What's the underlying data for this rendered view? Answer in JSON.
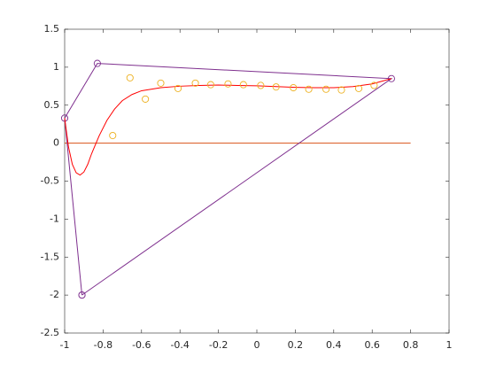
{
  "chart_data": {
    "type": "line",
    "xlim": [
      -1,
      1
    ],
    "ylim": [
      -2.5,
      1.5
    ],
    "xticks": [
      -1,
      -0.8,
      -0.6,
      -0.4,
      -0.2,
      0,
      0.2,
      0.4,
      0.6,
      0.8,
      1
    ],
    "yticks": [
      -2.5,
      -2,
      -1.5,
      -1,
      -0.5,
      0,
      0.5,
      1,
      1.5
    ],
    "grid": false,
    "series": [
      {
        "style": "line",
        "color": "#D95319",
        "x": [
          -1,
          0.8
        ],
        "values": [
          0,
          0
        ]
      },
      {
        "style": "line+markers",
        "color": "#7E2F8E",
        "x": [
          -0.91,
          -1,
          -0.83,
          0.7,
          -0.91
        ],
        "values": [
          -2,
          0.33,
          1.05,
          0.85,
          -2
        ]
      },
      {
        "style": "line",
        "color": "#FF0000",
        "x": [
          -1,
          -0.98,
          -0.96,
          -0.94,
          -0.92,
          -0.9,
          -0.88,
          -0.86,
          -0.84,
          -0.82,
          -0.78,
          -0.74,
          -0.7,
          -0.65,
          -0.6,
          -0.5,
          -0.4,
          -0.3,
          -0.2,
          -0.1,
          0,
          0.1,
          0.2,
          0.3,
          0.4,
          0.5,
          0.6,
          0.7
        ],
        "values": [
          0.33,
          -0.05,
          -0.28,
          -0.39,
          -0.42,
          -0.38,
          -0.28,
          -0.14,
          -0.02,
          0.1,
          0.3,
          0.45,
          0.56,
          0.64,
          0.69,
          0.73,
          0.75,
          0.76,
          0.765,
          0.76,
          0.755,
          0.745,
          0.735,
          0.73,
          0.73,
          0.745,
          0.78,
          0.85
        ]
      },
      {
        "style": "markers",
        "color": "#EDB120",
        "x": [
          -0.75,
          -0.66,
          -0.58,
          -0.5,
          -0.41,
          -0.32,
          -0.24,
          -0.15,
          -0.07,
          0.02,
          0.1,
          0.19,
          0.27,
          0.36,
          0.44,
          0.53,
          0.61
        ],
        "values": [
          0.1,
          0.86,
          0.58,
          0.79,
          0.72,
          0.79,
          0.77,
          0.78,
          0.77,
          0.76,
          0.74,
          0.73,
          0.71,
          0.71,
          0.7,
          0.72,
          0.76
        ]
      }
    ]
  }
}
